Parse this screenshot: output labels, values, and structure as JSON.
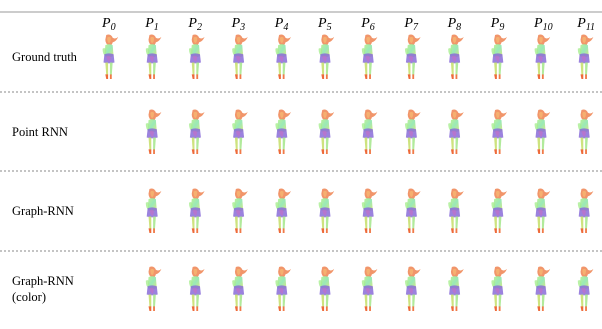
{
  "columns": [
    {
      "base": "P",
      "sub": "0"
    },
    {
      "base": "P",
      "sub": "1"
    },
    {
      "base": "P",
      "sub": "2"
    },
    {
      "base": "P",
      "sub": "3"
    },
    {
      "base": "P",
      "sub": "4"
    },
    {
      "base": "P",
      "sub": "5"
    },
    {
      "base": "P",
      "sub": "6"
    },
    {
      "base": "P",
      "sub": "7"
    },
    {
      "base": "P",
      "sub": "8"
    },
    {
      "base": "P",
      "sub": "9"
    },
    {
      "base": "P",
      "sub": "10"
    },
    {
      "base": "P",
      "sub": "11"
    }
  ],
  "rows": [
    {
      "label": [
        "Ground truth"
      ]
    },
    {
      "label": [
        "Point RNN"
      ]
    },
    {
      "label": [
        "Graph-RNN"
      ]
    },
    {
      "label": [
        "Graph-RNN",
        "(color)"
      ]
    }
  ]
}
